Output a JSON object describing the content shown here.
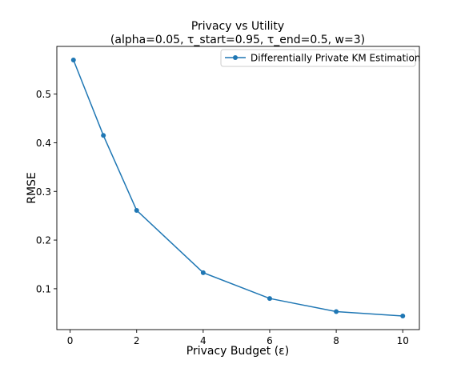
{
  "chart_data": {
    "type": "line",
    "title": "Privacy vs Utility",
    "subtitle": "(alpha=0.05, τ_start=0.95, τ_end=0.5, w=3)",
    "xlabel": "Privacy Budget (ε)",
    "ylabel": "RMSE",
    "xlim": [
      -0.4,
      10.5
    ],
    "ylim": [
      0.016,
      0.598
    ],
    "xticks": [
      0,
      2,
      4,
      6,
      8,
      10
    ],
    "xtick_labels": [
      "0",
      "2",
      "4",
      "6",
      "8",
      "10"
    ],
    "yticks": [
      0.1,
      0.2,
      0.3,
      0.4,
      0.5
    ],
    "ytick_labels": [
      "0.1",
      "0.2",
      "0.3",
      "0.4",
      "0.5"
    ],
    "grid": false,
    "legend_position": "upper right",
    "series": [
      {
        "name": "Differentially Private KM Estimation",
        "color": "#1f77b4",
        "marker": "circle",
        "x": [
          0.1,
          1,
          2,
          4,
          6,
          8,
          10
        ],
        "y": [
          0.57,
          0.415,
          0.261,
          0.133,
          0.08,
          0.053,
          0.044
        ]
      }
    ]
  }
}
